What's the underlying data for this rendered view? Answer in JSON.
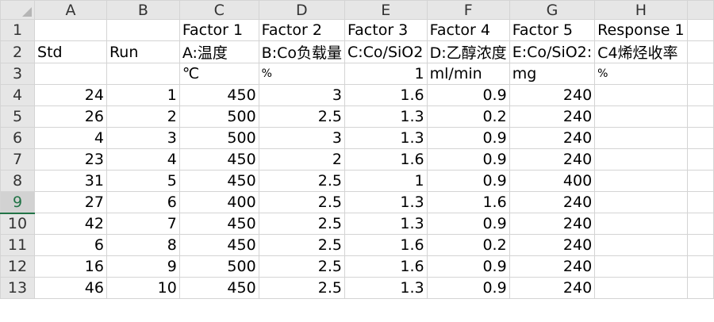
{
  "columns": [
    "A",
    "B",
    "C",
    "D",
    "E",
    "F",
    "G",
    "H"
  ],
  "active_row": "9",
  "rows": [
    {
      "n": "1",
      "A": "",
      "B": "",
      "C": "Factor 1",
      "D": "Factor 2",
      "E": "Factor 3",
      "F": "Factor 4",
      "G": "Factor 5",
      "H": "Response 1"
    },
    {
      "n": "2",
      "A": "Std",
      "B": "Run",
      "C": "A:温度",
      "D": "B:Co负载量",
      "E": "C:Co/SiO2",
      "F": "D:乙醇浓度",
      "G": "E:Co/SiO2:",
      "H": "C4烯烃收率"
    },
    {
      "n": "3",
      "A": "",
      "B": "",
      "C": "℃",
      "D": "%",
      "E": "1",
      "F": "ml/min",
      "G": "mg",
      "H": "%"
    },
    {
      "n": "4",
      "A": "24",
      "B": "1",
      "C": "450",
      "D": "3",
      "E": "1.6",
      "F": "0.9",
      "G": "240",
      "H": ""
    },
    {
      "n": "5",
      "A": "26",
      "B": "2",
      "C": "500",
      "D": "2.5",
      "E": "1.3",
      "F": "0.2",
      "G": "240",
      "H": ""
    },
    {
      "n": "6",
      "A": "4",
      "B": "3",
      "C": "500",
      "D": "3",
      "E": "1.3",
      "F": "0.9",
      "G": "240",
      "H": ""
    },
    {
      "n": "7",
      "A": "23",
      "B": "4",
      "C": "450",
      "D": "2",
      "E": "1.6",
      "F": "0.9",
      "G": "240",
      "H": ""
    },
    {
      "n": "8",
      "A": "31",
      "B": "5",
      "C": "450",
      "D": "2.5",
      "E": "1",
      "F": "0.9",
      "G": "400",
      "H": ""
    },
    {
      "n": "9",
      "A": "27",
      "B": "6",
      "C": "400",
      "D": "2.5",
      "E": "1.3",
      "F": "1.6",
      "G": "240",
      "H": ""
    },
    {
      "n": "10",
      "A": "42",
      "B": "7",
      "C": "450",
      "D": "2.5",
      "E": "1.3",
      "F": "0.9",
      "G": "240",
      "H": ""
    },
    {
      "n": "11",
      "A": "6",
      "B": "8",
      "C": "450",
      "D": "2.5",
      "E": "1.6",
      "F": "0.2",
      "G": "240",
      "H": ""
    },
    {
      "n": "12",
      "A": "16",
      "B": "9",
      "C": "500",
      "D": "2.5",
      "E": "1.6",
      "F": "0.9",
      "G": "240",
      "H": ""
    },
    {
      "n": "13",
      "A": "46",
      "B": "10",
      "C": "450",
      "D": "2.5",
      "E": "1.3",
      "F": "0.9",
      "G": "240",
      "H": ""
    }
  ]
}
